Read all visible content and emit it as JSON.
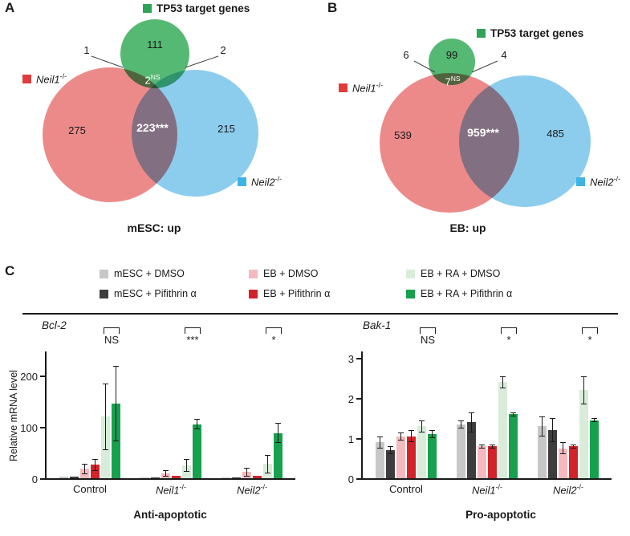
{
  "figure": {
    "panelA": {
      "letter": "A",
      "legend": "TP53 target genes",
      "green_only": "111",
      "left_small": "1",
      "right_small": "2",
      "mid_small": "2",
      "mid_small_sup": "NS",
      "red_only": "275",
      "center": "223***",
      "blue_only": "215",
      "neil1_name": "Neil1",
      "neil1_sup": "-/-",
      "neil2_name": "Neil2",
      "neil2_sup": "-/-",
      "caption": "mESC: up"
    },
    "panelB": {
      "letter": "B",
      "legend": "TP53 target genes",
      "green_only": "99",
      "left_small": "6",
      "right_small": "4",
      "mid_small": "7",
      "mid_small_sup": "NS",
      "red_only": "539",
      "center": "959***",
      "blue_only": "485",
      "neil1_name": "Neil1",
      "neil1_sup": "-/-",
      "neil2_name": "Neil2",
      "neil2_sup": "-/-",
      "caption": "EB: up"
    },
    "panelC": {
      "letter": "C"
    }
  },
  "colors": {
    "venn_red": "#ec8a8a",
    "venn_blue": "#8ccdee",
    "venn_green": "#55b873",
    "marker_red": "#e03c3c",
    "marker_blue": "#3fb3e3",
    "marker_green": "#2fa457",
    "axis": "#1a1a1a"
  },
  "chart_data": [
    {
      "type": "bar",
      "title": "Bcl-2",
      "xlabel": "Anti-apoptotic",
      "ylabel": "Relative mRNA level",
      "categories": [
        "Control",
        "Neil1",
        "Neil2"
      ],
      "category_sups": [
        "",
        "-/-",
        "-/-"
      ],
      "yticks": [
        0,
        100,
        200
      ],
      "ymax": 250,
      "grid": false,
      "legend_position": "top",
      "significance": [
        "NS",
        "***",
        "*"
      ],
      "series": [
        {
          "name": "mESC + DMSO",
          "color": "#c7c7c7",
          "values": [
            3,
            2,
            2
          ],
          "errors": [
            2,
            1,
            1
          ]
        },
        {
          "name": "mESC + Pifithrin α",
          "color": "#3d3d3d",
          "values": [
            3,
            2,
            2
          ],
          "errors": [
            2,
            1,
            1
          ]
        },
        {
          "name": "EB + DMSO",
          "color": "#f4babf",
          "values": [
            18,
            9,
            12
          ],
          "errors": [
            10,
            6,
            9
          ]
        },
        {
          "name": "EB + Pifithrin α",
          "color": "#d2232a",
          "values": [
            26,
            4,
            4
          ],
          "errors": [
            12,
            2,
            2
          ]
        },
        {
          "name": "EB + RA + DMSO",
          "color": "#d8ecd9",
          "values": [
            120,
            25,
            28
          ],
          "errors": [
            65,
            12,
            18
          ]
        },
        {
          "name": "EB + RA + Pifithrin α",
          "color": "#17a04d",
          "values": [
            145,
            105,
            88
          ],
          "errors": [
            73,
            10,
            20
          ]
        }
      ]
    },
    {
      "type": "bar",
      "title": "Bak-1",
      "xlabel": "Pro-apoptotic",
      "ylabel": "",
      "categories": [
        "Control",
        "Neil1",
        "Neil2"
      ],
      "category_sups": [
        "",
        "-/-",
        "-/-"
      ],
      "yticks": [
        0,
        1,
        2,
        3
      ],
      "ymax": 3.2,
      "grid": false,
      "legend_position": "top",
      "significance": [
        "NS",
        "*",
        "*"
      ],
      "series": [
        {
          "name": "mESC + DMSO",
          "color": "#c7c7c7",
          "values": [
            0.9,
            1.35,
            1.3
          ],
          "errors": [
            0.15,
            0.1,
            0.25
          ]
        },
        {
          "name": "mESC + Pifithrin α",
          "color": "#3d3d3d",
          "values": [
            0.7,
            1.4,
            1.2
          ],
          "errors": [
            0.1,
            0.25,
            0.3
          ]
        },
        {
          "name": "EB + DMSO",
          "color": "#f4babf",
          "values": [
            1.05,
            0.8,
            0.75
          ],
          "errors": [
            0.1,
            0.05,
            0.15
          ]
        },
        {
          "name": "EB + Pifithrin α",
          "color": "#d2232a",
          "values": [
            1.05,
            0.8,
            0.8
          ],
          "errors": [
            0.15,
            0.05,
            0.05
          ]
        },
        {
          "name": "EB + RA + DMSO",
          "color": "#d8ecd9",
          "values": [
            1.3,
            2.4,
            2.2
          ],
          "errors": [
            0.15,
            0.15,
            0.35
          ]
        },
        {
          "name": "EB + RA + Pifithrin α",
          "color": "#17a04d",
          "values": [
            1.1,
            1.6,
            1.45
          ],
          "errors": [
            0.1,
            0.05,
            0.05
          ]
        }
      ]
    }
  ]
}
